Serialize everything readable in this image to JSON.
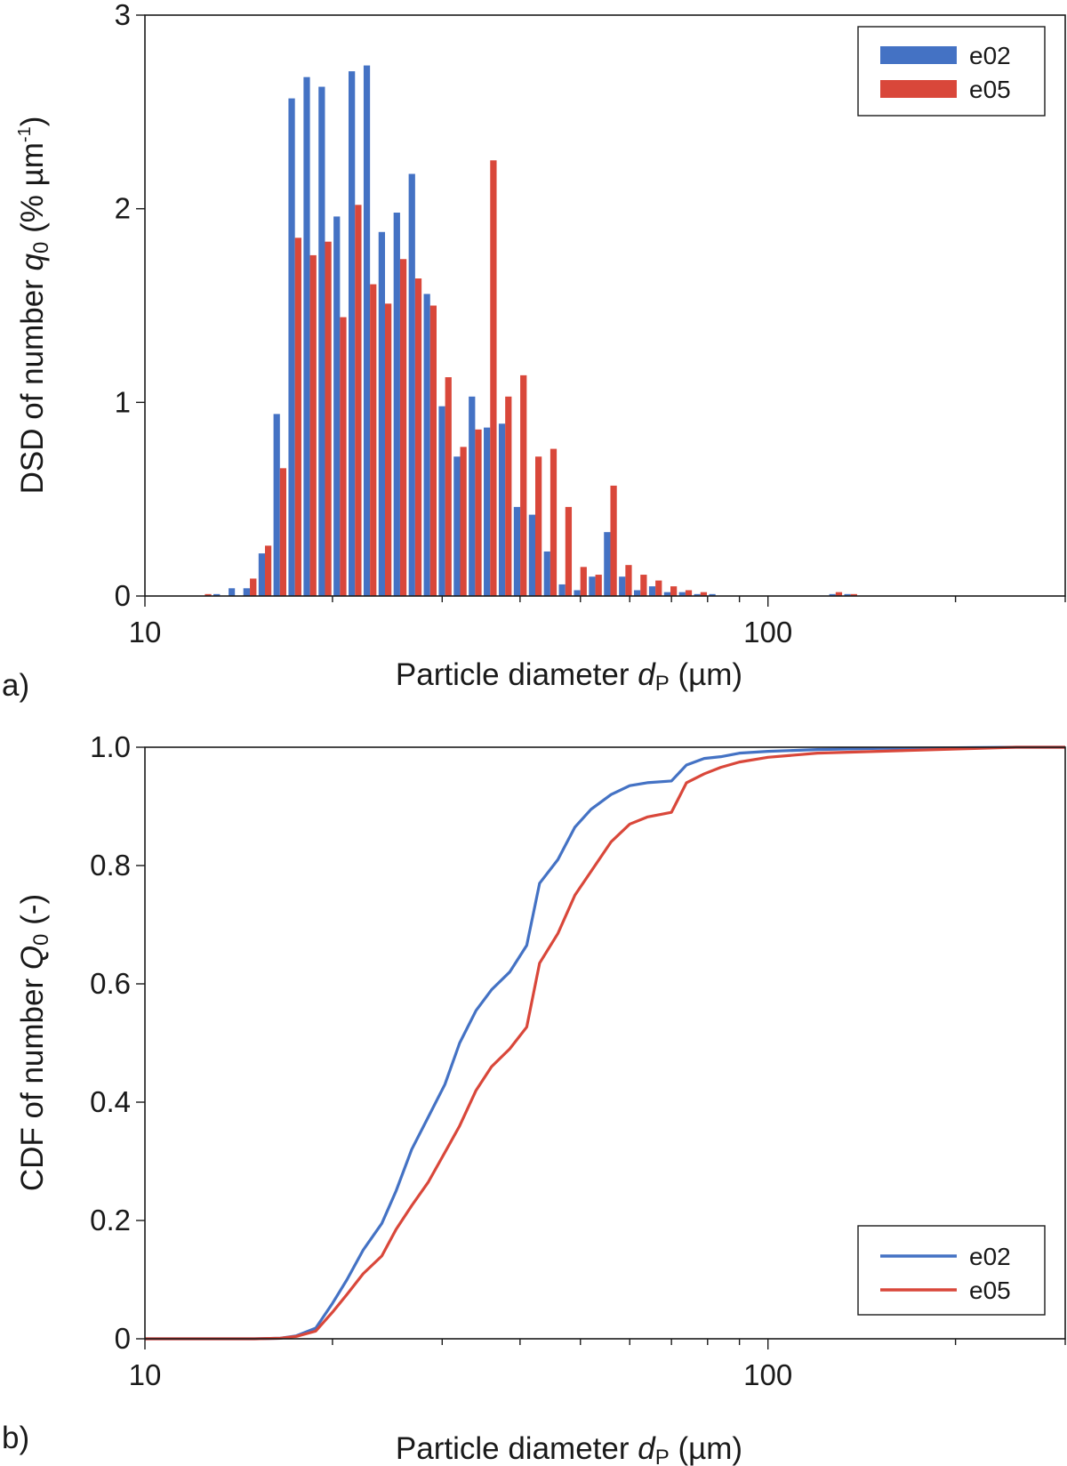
{
  "colors": {
    "e02": "#4472c4",
    "e05": "#d9473a"
  },
  "panels": {
    "a": {
      "label": "a)"
    },
    "b": {
      "label": "b)"
    }
  },
  "chart_data": [
    {
      "type": "bar",
      "ylabel": {
        "main": "DSD of number ",
        "var": "q",
        "sub": "0",
        "unit_open": " (% µm",
        "sup": "-1",
        "unit_close": ")"
      },
      "xlabel": {
        "main": "Particle diameter ",
        "var": "d",
        "sub": "P",
        "unit": " (µm)"
      },
      "x_scale": "log",
      "xlim": [
        10,
        300
      ],
      "ylim": [
        0,
        3
      ],
      "x_ticks": [
        {
          "value": 10,
          "label": "10"
        },
        {
          "value": 100,
          "label": "100"
        }
      ],
      "y_ticks": [
        {
          "value": 0,
          "label": "0"
        },
        {
          "value": 1,
          "label": "1"
        },
        {
          "value": 2,
          "label": "2"
        },
        {
          "value": 3,
          "label": "3"
        }
      ],
      "legend": {
        "position": "top-right"
      },
      "bin_edges_um": [
        12.14,
        12.83,
        13.57,
        14.33,
        15.16,
        16.02,
        16.93,
        17.9,
        18.92,
        20.0,
        21.14,
        22.35,
        23.62,
        24.97,
        26.4,
        27.91,
        29.5,
        31.18,
        32.96,
        34.84,
        36.83,
        38.93,
        41.16,
        43.51,
        45.99,
        48.62,
        51.39,
        54.33,
        57.43,
        60.7,
        64.17,
        67.83,
        71.7,
        75.79,
        80.12,
        84.7,
        89.53,
        94.64,
        100.04,
        105.76,
        111.79,
        118.17,
        124.92,
        132.05,
        139.58,
        147.55,
        155.98,
        164.88,
        174.3,
        184.25,
        194.77,
        205.89,
        217.64,
        230.07,
        243.2,
        257.09
      ],
      "series": [
        {
          "name": "e02",
          "values": [
            0.0,
            0.01,
            0.04,
            0.04,
            0.22,
            0.94,
            2.57,
            2.68,
            2.63,
            1.96,
            2.71,
            2.74,
            1.88,
            1.98,
            2.18,
            1.56,
            0.98,
            0.72,
            1.03,
            0.87,
            0.89,
            0.46,
            0.42,
            0.23,
            0.06,
            0.03,
            0.1,
            0.33,
            0.1,
            0.03,
            0.05,
            0.02,
            0.02,
            0.01,
            0.01,
            0.0,
            0.0,
            0.0,
            0.0,
            0.0,
            0.0,
            0.0,
            0.01,
            0.01,
            0.0,
            0.0,
            0.0,
            0.0,
            0.0,
            0.0,
            0.0,
            0.0,
            0.0,
            0.0,
            0.0
          ]
        },
        {
          "name": "e05",
          "values": [
            0.01,
            0.0,
            0.0,
            0.09,
            0.26,
            0.66,
            1.85,
            1.76,
            1.83,
            1.44,
            2.02,
            1.61,
            1.51,
            1.74,
            1.64,
            1.5,
            1.13,
            0.77,
            0.86,
            2.25,
            1.03,
            1.14,
            0.72,
            0.76,
            0.46,
            0.15,
            0.11,
            0.57,
            0.16,
            0.11,
            0.08,
            0.05,
            0.03,
            0.02,
            0.0,
            0.0,
            0.0,
            0.0,
            0.0,
            0.0,
            0.0,
            0.0,
            0.02,
            0.01,
            0.0,
            0.0,
            0.0,
            0.0,
            0.0,
            0.0,
            0.0,
            0.0,
            0.0,
            0.0,
            0.0
          ]
        }
      ]
    },
    {
      "type": "line",
      "ylabel": {
        "main": "CDF of number ",
        "var": "Q",
        "sub": "0",
        "unit": " (-)"
      },
      "xlabel": {
        "main": "Particle diameter ",
        "var": "d",
        "sub": "P",
        "unit": " (µm)"
      },
      "x_scale": "log",
      "xlim": [
        10,
        300
      ],
      "ylim": [
        0,
        1
      ],
      "x_ticks": [
        {
          "value": 10,
          "label": "10"
        },
        {
          "value": 100,
          "label": "100"
        }
      ],
      "y_ticks": [
        {
          "value": 0,
          "label": "0"
        },
        {
          "value": 0.2,
          "label": "0.2"
        },
        {
          "value": 0.4,
          "label": "0.4"
        },
        {
          "value": 0.6,
          "label": "0.6"
        },
        {
          "value": 0.8,
          "label": "0.8"
        },
        {
          "value": 1.0,
          "label": "1.0"
        }
      ],
      "legend": {
        "position": "bottom-right"
      },
      "series": [
        {
          "name": "e02",
          "points": [
            [
              10,
              0
            ],
            [
              15,
              0
            ],
            [
              16.5,
              0.001
            ],
            [
              17.5,
              0.005
            ],
            [
              18.8,
              0.018
            ],
            [
              20,
              0.06
            ],
            [
              21.1,
              0.1
            ],
            [
              22.4,
              0.15
            ],
            [
              24,
              0.195
            ],
            [
              25.3,
              0.25
            ],
            [
              26.8,
              0.32
            ],
            [
              28.5,
              0.375
            ],
            [
              30.3,
              0.43
            ],
            [
              32,
              0.5
            ],
            [
              34,
              0.555
            ],
            [
              36,
              0.59
            ],
            [
              38.5,
              0.62
            ],
            [
              41,
              0.665
            ],
            [
              43,
              0.77
            ],
            [
              46,
              0.81
            ],
            [
              49,
              0.865
            ],
            [
              52,
              0.895
            ],
            [
              56,
              0.92
            ],
            [
              60,
              0.935
            ],
            [
              64,
              0.94
            ],
            [
              70,
              0.943
            ],
            [
              74,
              0.97
            ],
            [
              79,
              0.981
            ],
            [
              84,
              0.984
            ],
            [
              90,
              0.99
            ],
            [
              100,
              0.993
            ],
            [
              120,
              0.996
            ],
            [
              150,
              0.998
            ],
            [
              200,
              0.999
            ],
            [
              250,
              1.0
            ],
            [
              300,
              1.0
            ]
          ]
        },
        {
          "name": "e05",
          "points": [
            [
              10,
              0
            ],
            [
              15,
              0
            ],
            [
              16.5,
              0.001
            ],
            [
              17.5,
              0.004
            ],
            [
              18.8,
              0.013
            ],
            [
              20,
              0.045
            ],
            [
              21.1,
              0.075
            ],
            [
              22.4,
              0.11
            ],
            [
              24,
              0.14
            ],
            [
              25.3,
              0.185
            ],
            [
              26.8,
              0.225
            ],
            [
              28.5,
              0.265
            ],
            [
              30.3,
              0.315
            ],
            [
              32,
              0.36
            ],
            [
              34,
              0.42
            ],
            [
              36,
              0.46
            ],
            [
              38.5,
              0.49
            ],
            [
              41,
              0.527
            ],
            [
              43,
              0.635
            ],
            [
              46,
              0.685
            ],
            [
              49,
              0.75
            ],
            [
              52,
              0.79
            ],
            [
              56,
              0.84
            ],
            [
              60,
              0.87
            ],
            [
              64,
              0.882
            ],
            [
              70,
              0.89
            ],
            [
              74,
              0.94
            ],
            [
              79,
              0.955
            ],
            [
              84,
              0.966
            ],
            [
              90,
              0.975
            ],
            [
              100,
              0.983
            ],
            [
              120,
              0.99
            ],
            [
              150,
              0.993
            ],
            [
              200,
              0.997
            ],
            [
              250,
              1.0
            ],
            [
              300,
              1.0
            ]
          ]
        }
      ]
    }
  ]
}
